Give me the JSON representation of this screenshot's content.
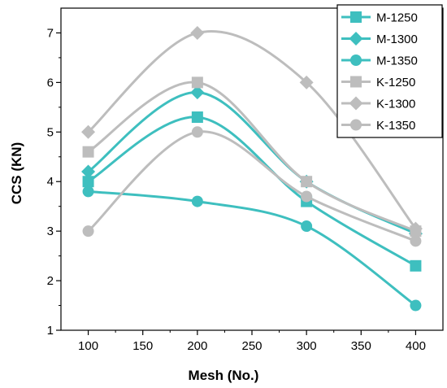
{
  "chart_data": {
    "type": "line",
    "title": "",
    "xlabel": "Mesh (No.)",
    "ylabel": "CCS (KN)",
    "x": [
      100,
      200,
      300,
      400
    ],
    "xlim": [
      75,
      425
    ],
    "ylim": [
      1,
      7.5
    ],
    "xticks": [
      100,
      150,
      200,
      250,
      300,
      350,
      400
    ],
    "yticks": [
      1,
      2,
      3,
      4,
      5,
      6,
      7
    ],
    "grid": false,
    "legend_position": "top-right",
    "series": [
      {
        "name": "M-1250",
        "values": [
          4.0,
          5.3,
          3.6,
          2.3
        ],
        "marker": "square",
        "color": "#3ebfbf"
      },
      {
        "name": "M-1300",
        "values": [
          4.2,
          5.8,
          4.0,
          2.95
        ],
        "marker": "diamond",
        "color": "#3ebfbf"
      },
      {
        "name": "M-1350",
        "values": [
          3.8,
          3.6,
          3.1,
          1.5
        ],
        "marker": "circle",
        "color": "#3ebfbf"
      },
      {
        "name": "K-1250",
        "values": [
          4.6,
          6.0,
          4.0,
          3.0
        ],
        "marker": "square",
        "color": "#bdbdbd"
      },
      {
        "name": "K-1300",
        "values": [
          5.0,
          7.0,
          6.0,
          3.05
        ],
        "marker": "diamond",
        "color": "#bdbdbd"
      },
      {
        "name": "K-1350",
        "values": [
          3.0,
          5.0,
          3.7,
          2.8
        ],
        "marker": "circle",
        "color": "#bdbdbd"
      }
    ]
  }
}
